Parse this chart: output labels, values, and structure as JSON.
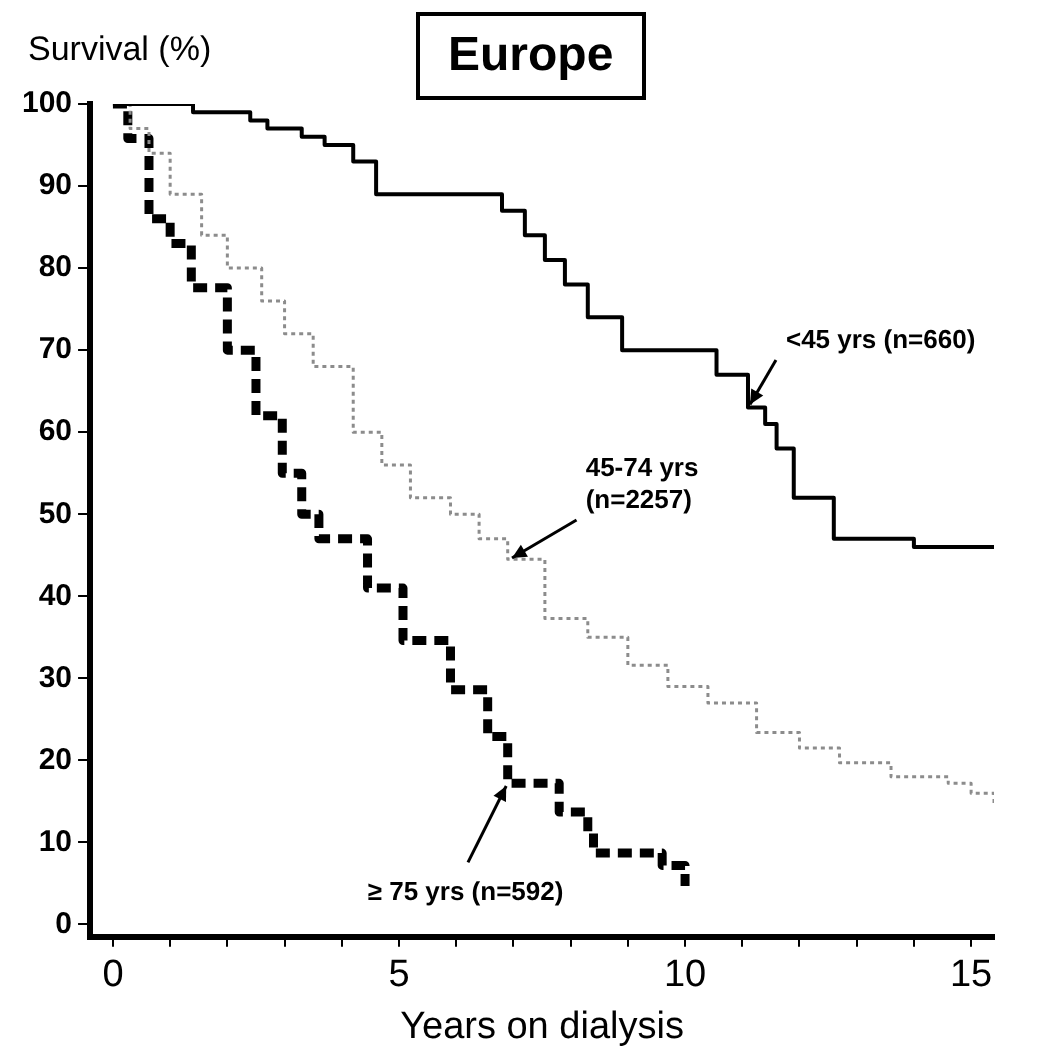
{
  "chart_data": {
    "type": "step",
    "title": "Europe",
    "xlabel": "Years on dialysis",
    "ylabel": "Survival (%)",
    "xlim": [
      -0.4,
      15.4
    ],
    "ylim": [
      -1.5,
      100
    ],
    "xticks": [
      0,
      {
        "value": 1,
        "label": null
      },
      {
        "value": 2,
        "label": null
      },
      {
        "value": 3,
        "label": null
      },
      {
        "value": 4,
        "label": null
      },
      5,
      {
        "value": 6,
        "label": null
      },
      {
        "value": 7,
        "label": null
      },
      {
        "value": 8,
        "label": null
      },
      {
        "value": 9,
        "label": null
      },
      10,
      {
        "value": 11,
        "label": null
      },
      {
        "value": 12,
        "label": null
      },
      {
        "value": 13,
        "label": null
      },
      {
        "value": 14,
        "label": null
      },
      15
    ],
    "yticks": [
      0,
      10,
      20,
      30,
      40,
      50,
      60,
      70,
      80,
      90,
      100
    ],
    "grid": false,
    "legend": false,
    "series": [
      {
        "name": "<45 yrs (n=660)",
        "color": "#000000",
        "line_style": "solid",
        "x": [
          0,
          1.4,
          2.4,
          2.7,
          3.3,
          3.7,
          4.2,
          4.6,
          6.8,
          7.2,
          7.55,
          7.9,
          8.3,
          8.9,
          10.55,
          11.1,
          11.4,
          11.6,
          11.9,
          12.6,
          14.0,
          15.3,
          15.4
        ],
        "values": [
          100,
          99,
          98,
          97,
          96,
          95,
          93,
          89,
          87,
          84,
          81,
          78,
          74,
          70,
          67,
          63,
          61,
          58,
          52,
          47,
          46,
          46,
          46
        ]
      },
      {
        "name": "45-74 yrs (n=2257)",
        "color": "#8c8c8c",
        "line_style": "dotted",
        "x": [
          0,
          0.3,
          0.63,
          1.0,
          1.55,
          2.0,
          2.6,
          3.0,
          3.5,
          4.2,
          4.7,
          5.2,
          5.9,
          6.4,
          6.9,
          7.55,
          8.3,
          9.0,
          9.7,
          10.4,
          11.25,
          12.0,
          12.7,
          13.6,
          14.6,
          15.0,
          15.4
        ],
        "values": [
          100,
          97,
          94,
          89,
          84,
          80,
          76,
          72,
          68,
          60,
          56,
          52,
          50,
          47,
          44.5,
          37.3,
          35,
          31.6,
          29,
          27,
          23.4,
          21.5,
          19.7,
          18,
          17.2,
          16,
          14.7
        ]
      },
      {
        "name": "≥ 75 yrs (n=592)",
        "color": "#000000",
        "line_style": "dashed",
        "x": [
          0,
          0.26,
          0.63,
          1.0,
          1.37,
          2.0,
          2.5,
          2.96,
          3.3,
          3.6,
          4.45,
          5.07,
          5.9,
          6.55,
          6.9,
          7.8,
          8.3,
          8.4,
          9.6,
          10.0
        ],
        "values": [
          100,
          95.8,
          86,
          83,
          77.6,
          70,
          62,
          55,
          50,
          47,
          41,
          34.6,
          28.6,
          22.9,
          17.2,
          13.7,
          11.2,
          8.7,
          7.2,
          4.7
        ]
      }
    ]
  }
}
